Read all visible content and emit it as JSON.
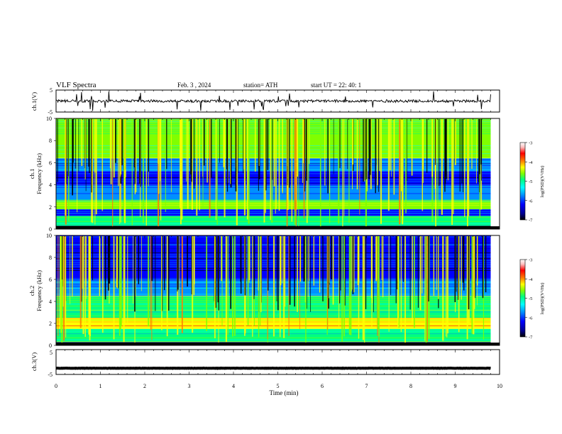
{
  "header": {
    "title": "VLF  Spectra",
    "date": "Feb. 3  , 2024",
    "station": "station= ATH",
    "start": "start  UT  =   22: 40: 1"
  },
  "colors": {
    "scale": [
      "#000000",
      "#000090",
      "#0000ff",
      "#0090ff",
      "#00ffff",
      "#00ff80",
      "#80ff00",
      "#ffff00",
      "#ff8000",
      "#ff0000",
      "#ffc0c0",
      "#ffffff"
    ],
    "trace": "#000000",
    "axis": "#000000"
  },
  "chart_data": [
    {
      "type": "line",
      "ylabel": "ch.1(V)",
      "ylim": [
        -5,
        5
      ],
      "yticks": [
        "5",
        "-5"
      ],
      "series_description": "noisy waveform centred near 0 V with frequent short spikes",
      "values_range": [
        -1,
        1
      ]
    },
    {
      "type": "heatmap",
      "ylabel": "ch.1\nFrequency  (kHz)",
      "ylabel_line1": "ch.1",
      "ylabel_line2": "Frequency  (kHz)",
      "ylim": [
        0,
        10
      ],
      "yticks": [
        "0",
        "2",
        "4",
        "6",
        "8",
        "10"
      ],
      "colorbar": {
        "label": "log(PSD)(V²/Hz)",
        "range": [
          -7,
          -3
        ],
        "ticks": [
          "-3",
          "-4",
          "-5",
          "-6",
          "-7"
        ]
      },
      "bands": [
        {
          "from_khz": 0.0,
          "to_khz": 0.3,
          "level": -7
        },
        {
          "from_khz": 0.3,
          "to_khz": 1.2,
          "level": -5.2
        },
        {
          "from_khz": 1.2,
          "to_khz": 1.8,
          "level": -6.2
        },
        {
          "from_khz": 1.8,
          "to_khz": 2.6,
          "level": -5.0
        },
        {
          "from_khz": 2.6,
          "to_khz": 4.0,
          "level": -5.8
        },
        {
          "from_khz": 4.0,
          "to_khz": 5.2,
          "level": -6.4
        },
        {
          "from_khz": 5.2,
          "to_khz": 6.4,
          "level": -5.9
        },
        {
          "from_khz": 6.4,
          "to_khz": 10.0,
          "level": -5.0
        }
      ]
    },
    {
      "type": "heatmap",
      "ylabel": "ch.2\nFrequency  (kHz)",
      "ylabel_line1": "ch.2",
      "ylabel_line2": "Frequency  (kHz)",
      "ylim": [
        0,
        10
      ],
      "yticks": [
        "0",
        "2",
        "4",
        "6",
        "8",
        "10"
      ],
      "colorbar": {
        "label": "log(PSD)(V²/Hz)",
        "range": [
          -7,
          -3
        ],
        "ticks": [
          "-3",
          "-4",
          "-5",
          "-6",
          "-7"
        ]
      },
      "bands": [
        {
          "from_khz": 0.0,
          "to_khz": 0.3,
          "level": -6.5
        },
        {
          "from_khz": 0.3,
          "to_khz": 1.5,
          "level": -5.3
        },
        {
          "from_khz": 1.5,
          "to_khz": 2.5,
          "level": -4.6
        },
        {
          "from_khz": 2.5,
          "to_khz": 4.5,
          "level": -5.1
        },
        {
          "from_khz": 4.5,
          "to_khz": 6.0,
          "level": -5.9
        },
        {
          "from_khz": 6.0,
          "to_khz": 10.0,
          "level": -6.3
        }
      ]
    },
    {
      "type": "line",
      "ylabel": "ch.3(V)",
      "ylim": [
        -5,
        5
      ],
      "yticks": [
        "5",
        "-5"
      ],
      "series_description": "flat thick trace near -2.5 V",
      "values_range": [
        -2.6,
        -2.4
      ]
    }
  ],
  "xaxis": {
    "xlabel": "Time  (min)",
    "xlim": [
      0,
      10
    ],
    "ticks": [
      "0",
      "1",
      "2",
      "3",
      "4",
      "5",
      "6",
      "7",
      "8",
      "9",
      "10"
    ],
    "data_end_min": 9.8
  }
}
